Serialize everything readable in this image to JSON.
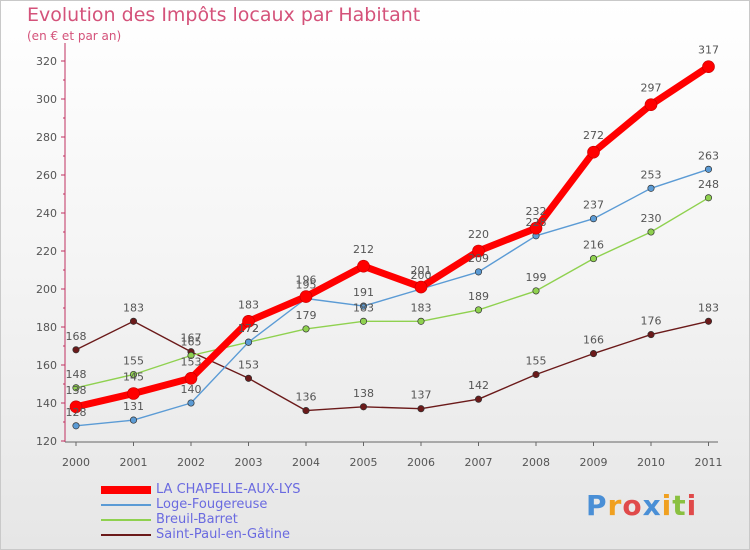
{
  "title": "Evolution des Impôts locaux par Habitant",
  "subtitle": "(en € et par an)",
  "brand": {
    "text": "Proxiti",
    "letter_colors": [
      "#4a8fd6",
      "#f0a020",
      "#e04a4a",
      "#4a8fd6",
      "#f0a020",
      "#8ac040",
      "#e04a4a"
    ]
  },
  "chart_data": {
    "type": "line",
    "title": "Evolution des Impôts locaux par Habitant",
    "subtitle": "(en € et par an)",
    "xlabel": "",
    "ylabel": "",
    "x": [
      "2000",
      "2001",
      "2002",
      "2003",
      "2004",
      "2005",
      "2006",
      "2007",
      "2008",
      "2009",
      "2010",
      "2011"
    ],
    "ylim": [
      120,
      320
    ],
    "yticks": [
      120,
      140,
      160,
      180,
      200,
      220,
      240,
      260,
      280,
      300,
      320
    ],
    "grid": false,
    "legend_position": "bottom-left",
    "series": [
      {
        "name": "LA CHAPELLE-AUX-LYS",
        "color": "#ff0000",
        "values": [
          138,
          145,
          153,
          183,
          196,
          212,
          201,
          220,
          232,
          272,
          297,
          317
        ],
        "labels": [
          "138",
          "145",
          "153",
          "183",
          "196",
          "212",
          "201",
          "220",
          "232",
          "272",
          "297",
          "317"
        ]
      },
      {
        "name": "Loge-Fougereuse",
        "color": "#5b9bd5",
        "values": [
          128,
          131,
          140,
          172,
          195,
          191,
          200,
          209,
          228,
          237,
          253,
          263
        ],
        "labels": [
          "128",
          "131",
          "140",
          "172",
          "195",
          "191",
          "200",
          "209",
          "228",
          "237",
          "253",
          "263"
        ]
      },
      {
        "name": "Breuil-Barret",
        "color": "#8fd14f",
        "values": [
          148,
          155,
          165,
          172,
          179,
          183,
          183,
          189,
          199,
          216,
          230,
          248
        ],
        "labels": [
          "148",
          "155",
          "165",
          "172",
          "179",
          "183",
          "183",
          "189",
          "199",
          "216",
          "230",
          "248"
        ]
      },
      {
        "name": "Saint-Paul-en-Gâtine",
        "color": "#6b1a1a",
        "values": [
          168,
          183,
          167,
          153,
          136,
          138,
          137,
          142,
          155,
          166,
          176,
          183
        ],
        "labels": [
          "168",
          "183",
          "167",
          "153",
          "136",
          "138",
          "137",
          "142",
          "155",
          "166",
          "176",
          "183"
        ]
      }
    ]
  }
}
